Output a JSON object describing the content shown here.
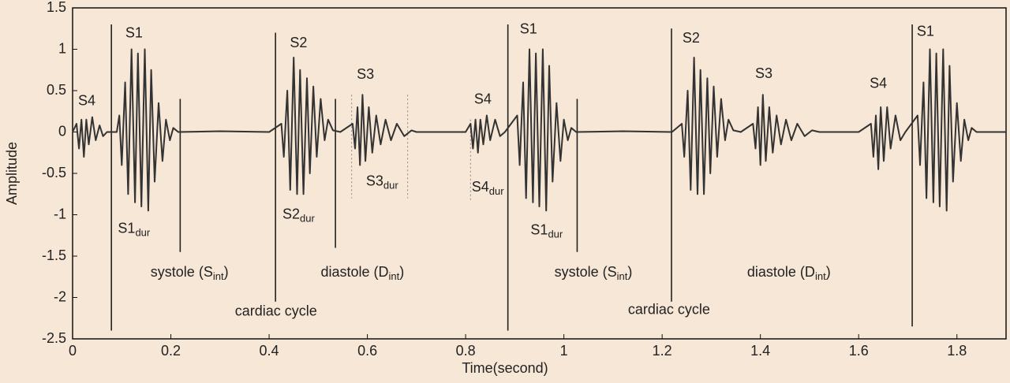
{
  "chart_data": {
    "type": "line",
    "xlabel": "Time(second)",
    "ylabel": "Amplitude",
    "color": "#333333",
    "xlim": [
      0,
      1.9
    ],
    "ylim": [
      -2.5,
      1.5
    ],
    "xticks": [
      0,
      0.2,
      0.4,
      0.6,
      0.8,
      1,
      1.2,
      1.4,
      1.6,
      1.8
    ],
    "yticks": [
      -2.5,
      -2,
      -1.5,
      -1,
      -0.5,
      0,
      0.5,
      1,
      1.5
    ],
    "x": [
      0,
      0.008,
      0.013,
      0.018,
      0.023,
      0.028,
      0.033,
      0.04,
      0.047,
      0.055,
      0.062,
      0.07,
      0.09,
      0.095,
      0.1,
      0.107,
      0.113,
      0.12,
      0.127,
      0.133,
      0.14,
      0.147,
      0.154,
      0.16,
      0.167,
      0.175,
      0.183,
      0.19,
      0.198,
      0.205,
      0.215,
      0.3,
      0.4,
      0.425,
      0.43,
      0.437,
      0.443,
      0.45,
      0.457,
      0.463,
      0.47,
      0.477,
      0.483,
      0.49,
      0.497,
      0.505,
      0.513,
      0.52,
      0.53,
      0.545,
      0.57,
      0.575,
      0.58,
      0.585,
      0.59,
      0.596,
      0.603,
      0.61,
      0.618,
      0.627,
      0.637,
      0.648,
      0.66,
      0.675,
      0.69,
      0.7,
      0.75,
      0.8,
      0.81,
      0.815,
      0.82,
      0.825,
      0.83,
      0.836,
      0.843,
      0.85,
      0.86,
      0.87,
      0.88,
      0.905,
      0.91,
      0.917,
      0.923,
      0.93,
      0.937,
      0.943,
      0.95,
      0.957,
      0.964,
      0.97,
      0.977,
      0.985,
      0.993,
      1.0,
      1.008,
      1.015,
      1.025,
      1.12,
      1.22,
      1.24,
      1.245,
      1.252,
      1.258,
      1.265,
      1.272,
      1.278,
      1.285,
      1.292,
      1.298,
      1.305,
      1.312,
      1.32,
      1.328,
      1.335,
      1.345,
      1.36,
      1.385,
      1.39,
      1.395,
      1.4,
      1.405,
      1.411,
      1.418,
      1.425,
      1.433,
      1.442,
      1.452,
      1.463,
      1.475,
      1.49,
      1.505,
      1.52,
      1.6,
      1.625,
      1.63,
      1.635,
      1.64,
      1.645,
      1.651,
      1.658,
      1.665,
      1.675,
      1.685,
      1.695,
      1.72,
      1.725,
      1.732,
      1.738,
      1.745,
      1.752,
      1.758,
      1.765,
      1.772,
      1.779,
      1.785,
      1.792,
      1.8,
      1.808,
      1.815,
      1.823,
      1.83,
      1.84,
      1.9
    ],
    "values": [
      0,
      0.1,
      -0.2,
      0.15,
      -0.3,
      0.15,
      -0.15,
      0.18,
      -0.1,
      0.08,
      -0.05,
      0,
      0,
      0.2,
      -0.4,
      0.6,
      -0.75,
      1.0,
      -0.85,
      0.95,
      -0.9,
      1.0,
      -0.95,
      0.75,
      -0.6,
      0.35,
      -0.35,
      0.15,
      -0.1,
      0.05,
      0,
      0.01,
      0,
      0.1,
      -0.3,
      0.5,
      -0.7,
      0.9,
      -0.75,
      0.75,
      -0.75,
      0.65,
      -0.5,
      0.55,
      -0.3,
      0.4,
      -0.1,
      0.15,
      0.02,
      0,
      0.1,
      -0.2,
      0.3,
      -0.4,
      0.45,
      -0.35,
      0.3,
      -0.25,
      0.2,
      -0.15,
      0.15,
      -0.1,
      0.1,
      -0.05,
      0.02,
      0,
      0,
      0,
      0.1,
      -0.2,
      0.15,
      -0.25,
      0.15,
      -0.15,
      0.2,
      -0.1,
      0.15,
      -0.05,
      0,
      0.2,
      -0.4,
      0.6,
      -0.8,
      1.0,
      -0.85,
      0.95,
      -0.9,
      1.0,
      -0.95,
      0.8,
      -0.6,
      0.35,
      -0.35,
      0.15,
      -0.1,
      0.05,
      0,
      0.01,
      0,
      0.1,
      -0.3,
      0.5,
      -0.7,
      0.9,
      -0.75,
      0.75,
      -0.75,
      0.65,
      -0.5,
      0.55,
      -0.3,
      0.4,
      -0.1,
      0.15,
      0.02,
      0,
      0.1,
      -0.2,
      0.3,
      -0.4,
      0.45,
      -0.35,
      0.3,
      -0.25,
      0.2,
      -0.15,
      0.15,
      -0.1,
      0.1,
      -0.05,
      0.02,
      0,
      0,
      0.1,
      -0.3,
      0.2,
      -0.45,
      0.3,
      -0.35,
      0.3,
      -0.2,
      0.2,
      -0.1,
      0,
      0.2,
      -0.4,
      0.6,
      -0.8,
      1.0,
      -0.85,
      0.95,
      -0.9,
      1.0,
      -0.95,
      0.8,
      -0.6,
      0.35,
      -0.35,
      0.15,
      -0.1,
      0.05,
      0,
      0
    ],
    "annotations": [
      [
        {
          "text": "S4"
        }
      ],
      [
        {
          "text": "S1"
        }
      ],
      [
        {
          "text": "S1"
        },
        {
          "text": "dur",
          "sub": true
        }
      ],
      [
        {
          "text": "systole (S"
        },
        {
          "text": "int",
          "sub": true
        },
        {
          "text": ")"
        }
      ],
      [
        {
          "text": "cardiac cycle"
        }
      ],
      [
        {
          "text": "S2"
        }
      ],
      [
        {
          "text": "S2"
        },
        {
          "text": "dur",
          "sub": true
        }
      ],
      [
        {
          "text": "S3"
        }
      ],
      [
        {
          "text": "S3"
        },
        {
          "text": "dur",
          "sub": true
        }
      ],
      [
        {
          "text": "diastole (D"
        },
        {
          "text": "int",
          "sub": true
        },
        {
          "text": ")"
        }
      ],
      [
        {
          "text": "S4"
        }
      ],
      [
        {
          "text": "S4"
        },
        {
          "text": "dur",
          "sub": true
        }
      ],
      [
        {
          "text": "S1"
        }
      ],
      [
        {
          "text": "S1"
        },
        {
          "text": "dur",
          "sub": true
        }
      ],
      [
        {
          "text": "systole (S"
        },
        {
          "text": "int",
          "sub": true
        },
        {
          "text": ")"
        }
      ],
      [
        {
          "text": "cardiac cycle"
        }
      ],
      [
        {
          "text": "S2"
        }
      ],
      [
        {
          "text": "S3"
        }
      ],
      [
        {
          "text": "diastole (D"
        },
        {
          "text": "int",
          "sub": true
        },
        {
          "text": ")"
        }
      ],
      [
        {
          "text": "S4"
        }
      ],
      [
        {
          "text": "S1"
        }
      ]
    ]
  }
}
